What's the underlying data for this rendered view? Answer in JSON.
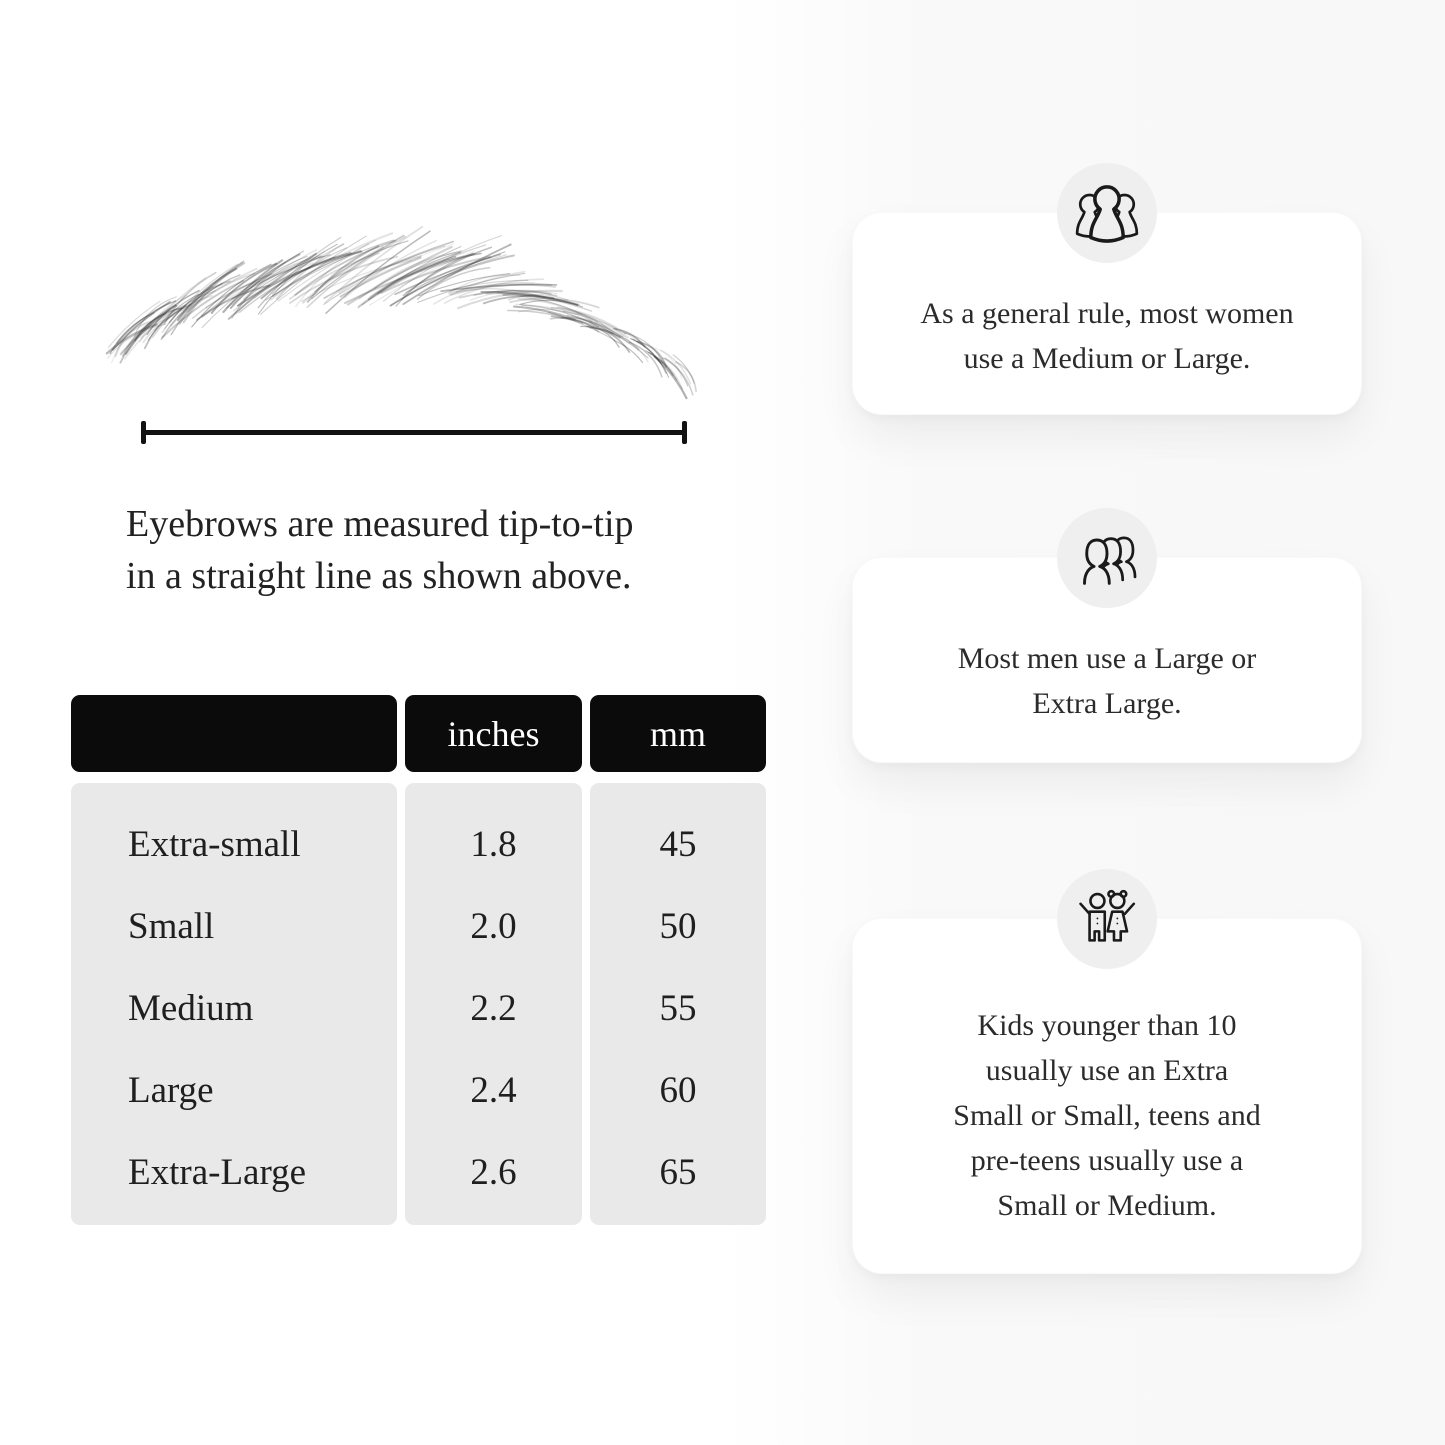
{
  "diagram": {
    "illustration": "eyebrow-sketch",
    "caption_line1": "Eyebrows are measured tip-to-tip",
    "caption_line2": "in a straight line as shown above.",
    "line_color": "#121212"
  },
  "size_table": {
    "header": {
      "size_label": "",
      "inches_label": "inches",
      "mm_label": "mm"
    },
    "rows": [
      {
        "label": "Extra-small",
        "inches": "1.8",
        "mm": "45"
      },
      {
        "label": "Small",
        "inches": "2.0",
        "mm": "50"
      },
      {
        "label": "Medium",
        "inches": "2.2",
        "mm": "55"
      },
      {
        "label": "Large",
        "inches": "2.4",
        "mm": "60"
      },
      {
        "label": "Extra-Large",
        "inches": "2.6",
        "mm": "65"
      }
    ],
    "colors": {
      "header_bg": "#0b0b0b",
      "header_text": "#ffffff",
      "body_bg": "#e9e9e9",
      "body_text": "#1f1f1f"
    }
  },
  "info_cards": [
    {
      "icon": "women-group-icon",
      "text": "As a general rule, most women\nuse a Medium or Large."
    },
    {
      "icon": "men-group-icon",
      "text": "Most men use a Large or\nExtra Large."
    },
    {
      "icon": "children-icon",
      "text": "Kids younger than 10\nusually use an Extra\nSmall or Small, teens and\npre-teens usually use a\nSmall or Medium."
    }
  ],
  "colors": {
    "card_bg": "#ffffff",
    "badge_bg": "#efefef",
    "icon_stroke": "#1a1a1a",
    "accent_black": "#0b0b0b"
  }
}
